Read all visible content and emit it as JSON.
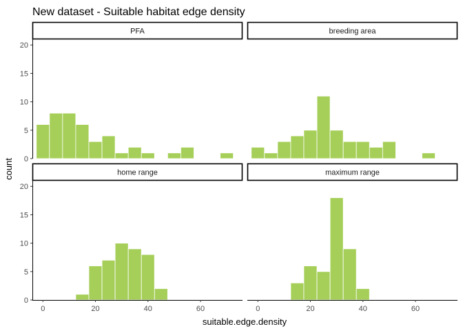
{
  "chart_data": {
    "type": "bar",
    "title": "New dataset - Suitable habitat edge density",
    "xlabel": "suitable.edge.density",
    "ylabel": "count",
    "xlim": [
      -4,
      76
    ],
    "ylim": [
      0,
      21
    ],
    "x_ticks": [
      0,
      20,
      40,
      60
    ],
    "y_ticks": [
      0,
      5,
      10,
      15,
      20
    ],
    "bin_width": 5,
    "bar_color": "#a6cf5a",
    "bar_edge_color": "#ffffff",
    "grid": false,
    "legend": "none",
    "panels": [
      {
        "name": "PFA",
        "bins": [
          {
            "x": 0,
            "count": 6
          },
          {
            "x": 5,
            "count": 8
          },
          {
            "x": 10,
            "count": 8
          },
          {
            "x": 15,
            "count": 6
          },
          {
            "x": 20,
            "count": 3
          },
          {
            "x": 25,
            "count": 4
          },
          {
            "x": 30,
            "count": 1
          },
          {
            "x": 35,
            "count": 2
          },
          {
            "x": 40,
            "count": 1
          },
          {
            "x": 50,
            "count": 1
          },
          {
            "x": 55,
            "count": 2
          },
          {
            "x": 70,
            "count": 1
          }
        ]
      },
      {
        "name": "breeding area",
        "bins": [
          {
            "x": 0,
            "count": 2
          },
          {
            "x": 5,
            "count": 1
          },
          {
            "x": 10,
            "count": 3
          },
          {
            "x": 15,
            "count": 4
          },
          {
            "x": 20,
            "count": 5
          },
          {
            "x": 25,
            "count": 11
          },
          {
            "x": 30,
            "count": 5
          },
          {
            "x": 35,
            "count": 3
          },
          {
            "x": 40,
            "count": 3
          },
          {
            "x": 45,
            "count": 2
          },
          {
            "x": 50,
            "count": 3
          },
          {
            "x": 65,
            "count": 1
          }
        ]
      },
      {
        "name": "home range",
        "bins": [
          {
            "x": 15,
            "count": 1
          },
          {
            "x": 20,
            "count": 6
          },
          {
            "x": 25,
            "count": 7
          },
          {
            "x": 30,
            "count": 10
          },
          {
            "x": 35,
            "count": 9
          },
          {
            "x": 40,
            "count": 8
          },
          {
            "x": 45,
            "count": 2
          }
        ]
      },
      {
        "name": "maximum range",
        "bins": [
          {
            "x": 15,
            "count": 3
          },
          {
            "x": 20,
            "count": 6
          },
          {
            "x": 25,
            "count": 5
          },
          {
            "x": 30,
            "count": 18
          },
          {
            "x": 35,
            "count": 9
          },
          {
            "x": 40,
            "count": 2
          }
        ]
      }
    ]
  }
}
